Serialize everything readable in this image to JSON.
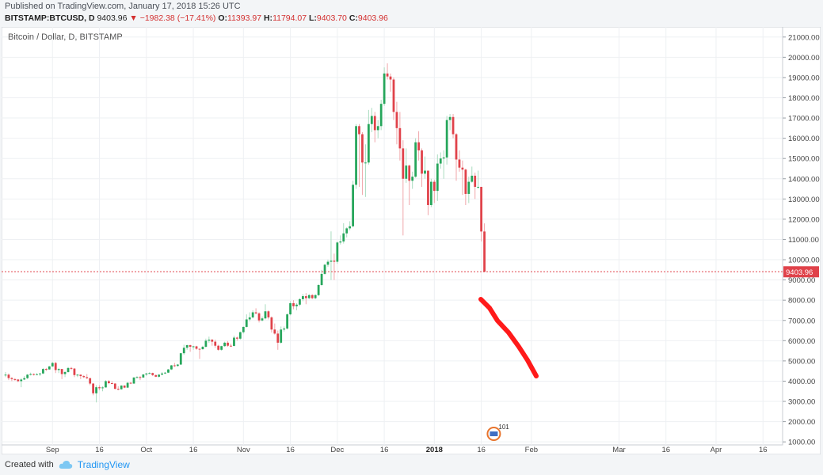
{
  "header": {
    "published": "Published on TradingView.com, January 17, 2018 15:26 UTC",
    "symbol": "BITSTAMP:BTCUSD, D",
    "last": "9403.96",
    "arrow": "▼",
    "change": "−1982.38 (−17.41%)",
    "o_label": "O:",
    "o_value": "11393.97",
    "h_label": "H:",
    "h_value": "11794.07",
    "l_label": "L:",
    "l_value": "9403.70",
    "c_label": "C:",
    "c_value": "9403.96"
  },
  "chart_data": {
    "type": "candlestick",
    "title": "Bitcoin / Dollar, D, BITSTAMP",
    "y_ticks": [
      1000,
      2000,
      3000,
      4000,
      5000,
      6000,
      7000,
      8000,
      9000,
      10000,
      11000,
      12000,
      13000,
      14000,
      15000,
      16000,
      17000,
      18000,
      19000,
      20000,
      21000
    ],
    "y_tick_labels": [
      "1000.00",
      "2000.00",
      "3000.00",
      "4000.00",
      "5000.00",
      "6000.00",
      "7000.00",
      "8000.00",
      "9000.00",
      "10000.00",
      "11000.00",
      "12000.00",
      "13000.00",
      "14000.00",
      "15000.00",
      "16000.00",
      "17000.00",
      "18000.00",
      "19000.00",
      "20000.00",
      "21000.00"
    ],
    "ylim": [
      850,
      21500
    ],
    "x_ticks": [
      {
        "date": "2017-09-01",
        "label": "Sep"
      },
      {
        "date": "2017-09-16",
        "label": "16"
      },
      {
        "date": "2017-10-01",
        "label": "Oct"
      },
      {
        "date": "2017-10-16",
        "label": "16"
      },
      {
        "date": "2017-11-01",
        "label": "Nov"
      },
      {
        "date": "2017-11-16",
        "label": "16"
      },
      {
        "date": "2017-12-01",
        "label": "Dec"
      },
      {
        "date": "2017-12-16",
        "label": "16"
      },
      {
        "date": "2018-01-01",
        "label": "2018"
      },
      {
        "date": "2018-01-16",
        "label": "16"
      },
      {
        "date": "2018-02-01",
        "label": "Feb"
      },
      {
        "date": "2018-03-01",
        "label": "Mar"
      },
      {
        "date": "2018-03-16",
        "label": "16"
      },
      {
        "date": "2018-04-01",
        "label": "Apr"
      },
      {
        "date": "2018-04-16",
        "label": "16"
      }
    ],
    "x_range": [
      "2017-08-17",
      "2018-04-21"
    ],
    "last_price": 9403.96,
    "last_price_label": "9403.96",
    "up_color": "#26a65b",
    "down_color": "#e0424a",
    "annotation_color": "#ff1a1a",
    "events_badge": "101",
    "candles": [
      [
        "2017-08-17",
        4300,
        4450,
        4200,
        4320
      ],
      [
        "2017-08-18",
        4320,
        4380,
        4050,
        4150
      ],
      [
        "2017-08-19",
        4150,
        4200,
        4000,
        4100
      ],
      [
        "2017-08-20",
        4100,
        4150,
        4020,
        4080
      ],
      [
        "2017-08-21",
        4080,
        4100,
        3950,
        4000
      ],
      [
        "2017-08-22",
        4000,
        4150,
        3700,
        4080
      ],
      [
        "2017-08-23",
        4080,
        4250,
        4050,
        4150
      ],
      [
        "2017-08-24",
        4150,
        4350,
        4100,
        4320
      ],
      [
        "2017-08-25",
        4320,
        4420,
        4280,
        4350
      ],
      [
        "2017-08-26",
        4350,
        4380,
        4280,
        4330
      ],
      [
        "2017-08-27",
        4330,
        4400,
        4300,
        4340
      ],
      [
        "2017-08-28",
        4340,
        4400,
        4250,
        4380
      ],
      [
        "2017-08-29",
        4380,
        4650,
        4350,
        4600
      ],
      [
        "2017-08-30",
        4600,
        4650,
        4500,
        4580
      ],
      [
        "2017-08-31",
        4580,
        4750,
        4560,
        4730
      ],
      [
        "2017-09-01",
        4730,
        4950,
        4700,
        4900
      ],
      [
        "2017-09-02",
        4900,
        4950,
        4400,
        4550
      ],
      [
        "2017-09-03",
        4550,
        4650,
        4400,
        4600
      ],
      [
        "2017-09-04",
        4600,
        4600,
        4100,
        4350
      ],
      [
        "2017-09-05",
        4350,
        4500,
        4200,
        4450
      ],
      [
        "2017-09-06",
        4450,
        4700,
        4420,
        4650
      ],
      [
        "2017-09-07",
        4650,
        4700,
        4550,
        4620
      ],
      [
        "2017-09-08",
        4620,
        4650,
        4200,
        4300
      ],
      [
        "2017-09-09",
        4300,
        4350,
        4200,
        4320
      ],
      [
        "2017-09-10",
        4320,
        4330,
        4100,
        4250
      ],
      [
        "2017-09-11",
        4250,
        4300,
        4150,
        4200
      ],
      [
        "2017-09-12",
        4200,
        4350,
        4100,
        4150
      ],
      [
        "2017-09-13",
        4150,
        4150,
        3800,
        3880
      ],
      [
        "2017-09-14",
        3880,
        3900,
        3300,
        3400
      ],
      [
        "2017-09-15",
        3400,
        3800,
        2950,
        3700
      ],
      [
        "2017-09-16",
        3700,
        3800,
        3550,
        3650
      ],
      [
        "2017-09-17",
        3650,
        3750,
        3500,
        3690
      ],
      [
        "2017-09-18",
        3690,
        4050,
        3680,
        4000
      ],
      [
        "2017-09-19",
        4000,
        4050,
        3850,
        3900
      ],
      [
        "2017-09-20",
        3900,
        4000,
        3850,
        3880
      ],
      [
        "2017-09-21",
        3880,
        3900,
        3600,
        3620
      ],
      [
        "2017-09-22",
        3620,
        3750,
        3550,
        3600
      ],
      [
        "2017-09-23",
        3600,
        3800,
        3580,
        3780
      ],
      [
        "2017-09-24",
        3780,
        3800,
        3650,
        3680
      ],
      [
        "2017-09-25",
        3680,
        3950,
        3670,
        3920
      ],
      [
        "2017-09-26",
        3920,
        3950,
        3850,
        3880
      ],
      [
        "2017-09-27",
        3880,
        4200,
        3870,
        4180
      ],
      [
        "2017-09-28",
        4180,
        4250,
        4150,
        4200
      ],
      [
        "2017-09-29",
        4200,
        4250,
        4050,
        4180
      ],
      [
        "2017-09-30",
        4180,
        4350,
        4170,
        4330
      ],
      [
        "2017-10-01",
        4330,
        4400,
        4250,
        4380
      ],
      [
        "2017-10-02",
        4380,
        4450,
        4350,
        4400
      ],
      [
        "2017-10-03",
        4400,
        4420,
        4250,
        4300
      ],
      [
        "2017-10-04",
        4300,
        4320,
        4200,
        4220
      ],
      [
        "2017-10-05",
        4220,
        4350,
        4180,
        4320
      ],
      [
        "2017-10-06",
        4320,
        4450,
        4300,
        4380
      ],
      [
        "2017-10-07",
        4380,
        4450,
        4350,
        4420
      ],
      [
        "2017-10-08",
        4420,
        4600,
        4400,
        4580
      ],
      [
        "2017-10-09",
        4580,
        4800,
        4550,
        4780
      ],
      [
        "2017-10-10",
        4780,
        4900,
        4700,
        4750
      ],
      [
        "2017-10-11",
        4750,
        4850,
        4720,
        4820
      ],
      [
        "2017-10-12",
        4820,
        5400,
        4800,
        5380
      ],
      [
        "2017-10-13",
        5380,
        5800,
        5300,
        5650
      ],
      [
        "2017-10-14",
        5650,
        5800,
        5550,
        5780
      ],
      [
        "2017-10-15",
        5780,
        5800,
        5450,
        5700
      ],
      [
        "2017-10-16",
        5700,
        5750,
        5550,
        5720
      ],
      [
        "2017-10-17",
        5720,
        5750,
        5550,
        5600
      ],
      [
        "2017-10-18",
        5600,
        5600,
        5100,
        5580
      ],
      [
        "2017-10-19",
        5580,
        5750,
        5550,
        5700
      ],
      [
        "2017-10-20",
        5700,
        6100,
        5650,
        6000
      ],
      [
        "2017-10-21",
        6000,
        6200,
        5900,
        6050
      ],
      [
        "2017-10-22",
        6050,
        6080,
        5750,
        5950
      ],
      [
        "2017-10-23",
        5950,
        6050,
        5650,
        5750
      ],
      [
        "2017-10-24",
        5750,
        5800,
        5500,
        5550
      ],
      [
        "2017-10-25",
        5550,
        5750,
        5500,
        5730
      ],
      [
        "2017-10-26",
        5730,
        5950,
        5700,
        5900
      ],
      [
        "2017-10-27",
        5900,
        5980,
        5700,
        5750
      ],
      [
        "2017-10-28",
        5750,
        5850,
        5700,
        5740
      ],
      [
        "2017-10-29",
        5740,
        6250,
        5720,
        6150
      ],
      [
        "2017-10-30",
        6150,
        6200,
        6000,
        6100
      ],
      [
        "2017-10-31",
        6100,
        6450,
        6050,
        6420
      ],
      [
        "2017-11-01",
        6420,
        6700,
        6350,
        6680
      ],
      [
        "2017-11-02",
        6680,
        7300,
        6650,
        7050
      ],
      [
        "2017-11-03",
        7050,
        7400,
        6950,
        7150
      ],
      [
        "2017-11-04",
        7150,
        7500,
        7100,
        7400
      ],
      [
        "2017-11-05",
        7400,
        7600,
        7300,
        7350
      ],
      [
        "2017-11-06",
        7350,
        7400,
        6900,
        7000
      ],
      [
        "2017-11-07",
        7000,
        7200,
        6950,
        7100
      ],
      [
        "2017-11-08",
        7100,
        7800,
        7050,
        7450
      ],
      [
        "2017-11-09",
        7450,
        7500,
        7050,
        7150
      ],
      [
        "2017-11-10",
        7150,
        7200,
        6400,
        6550
      ],
      [
        "2017-11-11",
        6550,
        6850,
        6300,
        6350
      ],
      [
        "2017-11-12",
        6350,
        6500,
        5550,
        5900
      ],
      [
        "2017-11-13",
        5900,
        6700,
        5850,
        6550
      ],
      [
        "2017-11-14",
        6550,
        6700,
        6450,
        6600
      ],
      [
        "2017-11-15",
        6600,
        7350,
        6550,
        7300
      ],
      [
        "2017-11-16",
        7300,
        7950,
        7250,
        7850
      ],
      [
        "2017-11-17",
        7850,
        8000,
        7550,
        7700
      ],
      [
        "2017-11-18",
        7700,
        7850,
        7500,
        7780
      ],
      [
        "2017-11-19",
        7780,
        8100,
        7700,
        8050
      ],
      [
        "2017-11-20",
        8050,
        8300,
        7950,
        8200
      ],
      [
        "2017-11-21",
        8200,
        8350,
        7800,
        8100
      ],
      [
        "2017-11-22",
        8100,
        8300,
        8050,
        8250
      ],
      [
        "2017-11-23",
        8250,
        8300,
        8050,
        8100
      ],
      [
        "2017-11-24",
        8100,
        8300,
        8050,
        8250
      ],
      [
        "2017-11-25",
        8250,
        8800,
        8200,
        8750
      ],
      [
        "2017-11-26",
        8750,
        9500,
        8700,
        9300
      ],
      [
        "2017-11-27",
        9300,
        9800,
        9250,
        9750
      ],
      [
        "2017-11-28",
        9750,
        10000,
        9650,
        9900
      ],
      [
        "2017-11-29",
        9900,
        11400,
        9000,
        9950
      ],
      [
        "2017-11-30",
        9950,
        10300,
        9000,
        9900
      ],
      [
        "2017-12-01",
        9900,
        10900,
        9800,
        10850
      ],
      [
        "2017-12-02",
        10850,
        11200,
        10750,
        10900
      ],
      [
        "2017-12-03",
        10900,
        11800,
        10800,
        11300
      ],
      [
        "2017-12-04",
        11300,
        11600,
        11100,
        11550
      ],
      [
        "2017-12-05",
        11550,
        11900,
        11450,
        11650
      ],
      [
        "2017-12-06",
        11650,
        13900,
        11600,
        13700
      ],
      [
        "2017-12-07",
        13700,
        16700,
        13500,
        16600
      ],
      [
        "2017-12-08",
        16600,
        16700,
        13600,
        16200
      ],
      [
        "2017-12-09",
        16200,
        16300,
        13200,
        14800
      ],
      [
        "2017-12-10",
        14800,
        15700,
        13100,
        14800
      ],
      [
        "2017-12-11",
        14800,
        17400,
        14700,
        16700
      ],
      [
        "2017-12-12",
        16700,
        17500,
        16300,
        17100
      ],
      [
        "2017-12-13",
        17100,
        17300,
        15800,
        16400
      ],
      [
        "2017-12-14",
        16400,
        16900,
        16000,
        16600
      ],
      [
        "2017-12-15",
        16600,
        17900,
        16400,
        17700
      ],
      [
        "2017-12-16",
        17700,
        19500,
        17600,
        19200
      ],
      [
        "2017-12-17",
        19200,
        19700,
        18900,
        19050
      ],
      [
        "2017-12-18",
        19050,
        19200,
        18300,
        18900
      ],
      [
        "2017-12-19",
        18900,
        19000,
        16900,
        17300
      ],
      [
        "2017-12-20",
        17300,
        17800,
        15700,
        16500
      ],
      [
        "2017-12-21",
        16500,
        17300,
        14900,
        15500
      ],
      [
        "2017-12-22",
        15500,
        15900,
        11200,
        14000
      ],
      [
        "2017-12-23",
        14000,
        15500,
        13800,
        14650
      ],
      [
        "2017-12-24",
        14650,
        14700,
        12700,
        13900
      ],
      [
        "2017-12-25",
        13900,
        14350,
        13500,
        14100
      ],
      [
        "2017-12-26",
        14100,
        16000,
        14050,
        15800
      ],
      [
        "2017-12-27",
        15800,
        16350,
        14900,
        15400
      ],
      [
        "2017-12-28",
        15400,
        15500,
        13600,
        14250
      ],
      [
        "2017-12-29",
        14250,
        15100,
        14000,
        14400
      ],
      [
        "2017-12-30",
        14400,
        14400,
        12200,
        12700
      ],
      [
        "2017-12-31",
        12700,
        14000,
        12600,
        13850
      ],
      [
        "2018-01-01",
        13850,
        13950,
        12800,
        13400
      ],
      [
        "2018-01-02",
        13400,
        15200,
        12900,
        14750
      ],
      [
        "2018-01-03",
        14750,
        15300,
        14500,
        15000
      ],
      [
        "2018-01-04",
        15000,
        15400,
        14000,
        15050
      ],
      [
        "2018-01-05",
        15050,
        17100,
        14700,
        16900
      ],
      [
        "2018-01-06",
        16900,
        17200,
        16400,
        17050
      ],
      [
        "2018-01-07",
        17050,
        17200,
        16000,
        16200
      ],
      [
        "2018-01-08",
        16200,
        16250,
        13900,
        14950
      ],
      [
        "2018-01-09",
        14950,
        15400,
        14350,
        14550
      ],
      [
        "2018-01-10",
        14550,
        14900,
        13200,
        14450
      ],
      [
        "2018-01-11",
        14450,
        14500,
        12700,
        13250
      ],
      [
        "2018-01-12",
        13250,
        14100,
        12800,
        13850
      ],
      [
        "2018-01-13",
        13850,
        14600,
        13800,
        14150
      ],
      [
        "2018-01-14",
        14150,
        14300,
        13000,
        13600
      ],
      [
        "2018-01-15",
        13600,
        14400,
        13500,
        13600
      ],
      [
        "2018-01-16",
        13600,
        13600,
        10900,
        11394
      ],
      [
        "2018-01-17",
        11394,
        11794,
        9404,
        9404
      ]
    ]
  }
}
